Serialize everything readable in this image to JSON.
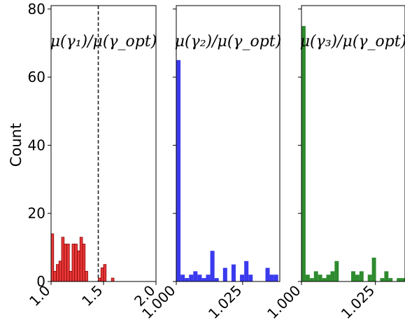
{
  "chart_data": [
    {
      "type": "bar",
      "title": "μ(γ₁)/μ(γ_opt)",
      "ylabel": "Count",
      "xlim": [
        1.0,
        2.0
      ],
      "ylim": [
        0,
        81
      ],
      "xticks": [
        "1.0",
        "1.5",
        "2.0"
      ],
      "yticks": [
        "0",
        "20",
        "40",
        "60",
        "80"
      ],
      "color": "#e83a3a",
      "edgecolor": "#8b0000",
      "reference_line": {
        "x": 1.45,
        "style": "dashed"
      },
      "bins": [
        {
          "x0": 1.0,
          "x1": 1.025,
          "count": 14
        },
        {
          "x0": 1.025,
          "x1": 1.05,
          "count": 3
        },
        {
          "x0": 1.05,
          "x1": 1.075,
          "count": 5
        },
        {
          "x0": 1.075,
          "x1": 1.1,
          "count": 6
        },
        {
          "x0": 1.1,
          "x1": 1.125,
          "count": 13
        },
        {
          "x0": 1.125,
          "x1": 1.15,
          "count": 11
        },
        {
          "x0": 1.15,
          "x1": 1.175,
          "count": 11
        },
        {
          "x0": 1.175,
          "x1": 1.2,
          "count": 3
        },
        {
          "x0": 1.2,
          "x1": 1.225,
          "count": 11
        },
        {
          "x0": 1.225,
          "x1": 1.25,
          "count": 11
        },
        {
          "x0": 1.25,
          "x1": 1.275,
          "count": 9
        },
        {
          "x0": 1.275,
          "x1": 1.3,
          "count": 13
        },
        {
          "x0": 1.3,
          "x1": 1.325,
          "count": 11
        },
        {
          "x0": 1.325,
          "x1": 1.35,
          "count": 3
        },
        {
          "x0": 1.45,
          "x1": 1.475,
          "count": 1
        },
        {
          "x0": 1.475,
          "x1": 1.5,
          "count": 4
        },
        {
          "x0": 1.5,
          "x1": 1.525,
          "count": 5
        },
        {
          "x0": 1.575,
          "x1": 1.6,
          "count": 1
        }
      ]
    },
    {
      "type": "bar",
      "title": "μ(γ₂)/μ(γ_opt)",
      "xlim": [
        1.0,
        1.039
      ],
      "ylim": [
        0,
        81
      ],
      "xticks": [
        "1.000",
        "1.025"
      ],
      "color": "#3a3aee",
      "bins": [
        {
          "x0": 1.0,
          "x1": 1.0016,
          "count": 65
        },
        {
          "x0": 1.0016,
          "x1": 1.0032,
          "count": 2
        },
        {
          "x0": 1.0032,
          "x1": 1.0048,
          "count": 1
        },
        {
          "x0": 1.0048,
          "x1": 1.0064,
          "count": 2
        },
        {
          "x0": 1.0064,
          "x1": 1.008,
          "count": 3
        },
        {
          "x0": 1.008,
          "x1": 1.0096,
          "count": 2
        },
        {
          "x0": 1.0096,
          "x1": 1.0112,
          "count": 1
        },
        {
          "x0": 1.0112,
          "x1": 1.0128,
          "count": 2
        },
        {
          "x0": 1.0128,
          "x1": 1.0144,
          "count": 9
        },
        {
          "x0": 1.0144,
          "x1": 1.016,
          "count": 1
        },
        {
          "x0": 1.0176,
          "x1": 1.0192,
          "count": 4
        },
        {
          "x0": 1.0208,
          "x1": 1.0224,
          "count": 5
        },
        {
          "x0": 1.024,
          "x1": 1.0256,
          "count": 2
        },
        {
          "x0": 1.0256,
          "x1": 1.0272,
          "count": 6
        },
        {
          "x0": 1.0272,
          "x1": 1.0288,
          "count": 2
        },
        {
          "x0": 1.0336,
          "x1": 1.0352,
          "count": 4
        },
        {
          "x0": 1.0352,
          "x1": 1.0368,
          "count": 2
        },
        {
          "x0": 1.0368,
          "x1": 1.0384,
          "count": 2
        }
      ]
    },
    {
      "type": "bar",
      "title": "μ(γ₃)/μ(γ_opt)",
      "xlim": [
        1.0,
        1.035
      ],
      "ylim": [
        0,
        81
      ],
      "xticks": [
        "1.000",
        "1.025"
      ],
      "color": "#2e8b2e",
      "bins": [
        {
          "x0": 1.0,
          "x1": 1.0014,
          "count": 75
        },
        {
          "x0": 1.0014,
          "x1": 1.0028,
          "count": 2
        },
        {
          "x0": 1.0028,
          "x1": 1.0042,
          "count": 1
        },
        {
          "x0": 1.0042,
          "x1": 1.0056,
          "count": 3
        },
        {
          "x0": 1.0056,
          "x1": 1.007,
          "count": 2
        },
        {
          "x0": 1.007,
          "x1": 1.0084,
          "count": 1
        },
        {
          "x0": 1.0084,
          "x1": 1.0098,
          "count": 2
        },
        {
          "x0": 1.0098,
          "x1": 1.0112,
          "count": 3
        },
        {
          "x0": 1.0112,
          "x1": 1.0126,
          "count": 6
        },
        {
          "x0": 1.0168,
          "x1": 1.0182,
          "count": 3
        },
        {
          "x0": 1.0182,
          "x1": 1.0196,
          "count": 2
        },
        {
          "x0": 1.0196,
          "x1": 1.021,
          "count": 3
        },
        {
          "x0": 1.0224,
          "x1": 1.0238,
          "count": 2
        },
        {
          "x0": 1.0238,
          "x1": 1.0252,
          "count": 7
        },
        {
          "x0": 1.0266,
          "x1": 1.028,
          "count": 1
        },
        {
          "x0": 1.028,
          "x1": 1.0294,
          "count": 3
        },
        {
          "x0": 1.0294,
          "x1": 1.0308,
          "count": 1
        },
        {
          "x0": 1.0322,
          "x1": 1.0336,
          "count": 1
        },
        {
          "x0": 1.0336,
          "x1": 1.035,
          "count": 1
        }
      ]
    }
  ]
}
